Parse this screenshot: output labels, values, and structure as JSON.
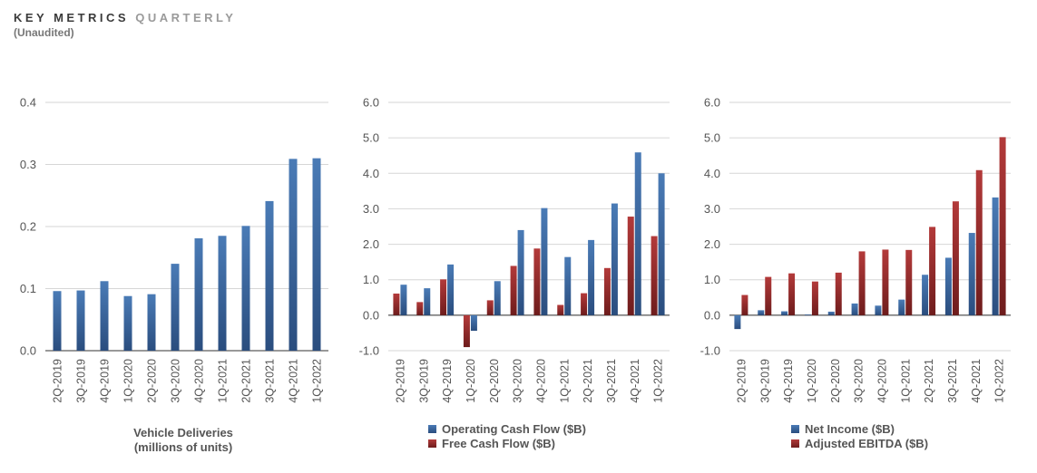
{
  "header": {
    "title_a": "KEY METRICS",
    "title_b": "QUARTERLY",
    "subtitle": "(Unaudited)"
  },
  "colors": {
    "bar_blue_top": "#4a7bb6",
    "bar_blue_bottom": "#2a4d7e",
    "bar_red_top": "#b33a3a",
    "bar_red_bottom": "#6e1c1c",
    "grid": "#d6d6d6",
    "axis": "#333333"
  },
  "chart_data": [
    {
      "type": "bar",
      "categories": [
        "2Q-2019",
        "3Q-2019",
        "4Q-2019",
        "1Q-2020",
        "2Q-2020",
        "3Q-2020",
        "4Q-2020",
        "1Q-2021",
        "2Q-2021",
        "3Q-2021",
        "4Q-2021",
        "1Q-2022"
      ],
      "series": [
        {
          "values": [
            0.096,
            0.097,
            0.112,
            0.088,
            0.091,
            0.14,
            0.181,
            0.185,
            0.201,
            0.241,
            0.309,
            0.31
          ]
        }
      ],
      "ylim": [
        0,
        0.4
      ],
      "yticks": [
        "0.0",
        "0.1",
        "0.2",
        "0.3",
        "0.4"
      ],
      "caption": [
        "Vehicle Deliveries",
        "(millions of units)"
      ],
      "grid": true
    },
    {
      "type": "bar",
      "categories": [
        "2Q-2019",
        "3Q-2019",
        "4Q-2019",
        "1Q-2020",
        "2Q-2020",
        "3Q-2020",
        "4Q-2020",
        "1Q-2021",
        "2Q-2021",
        "3Q-2021",
        "4Q-2021",
        "1Q-2022"
      ],
      "series": [
        {
          "name": "Free Cash Flow ($B)",
          "values": [
            0.61,
            0.37,
            1.01,
            -0.9,
            0.42,
            1.39,
            1.88,
            0.29,
            0.62,
            1.33,
            2.78,
            2.23
          ]
        },
        {
          "name": "Operating Cash Flow ($B)",
          "values": [
            0.86,
            0.76,
            1.43,
            -0.44,
            0.96,
            2.4,
            3.02,
            1.64,
            2.12,
            3.15,
            4.59,
            4.0
          ]
        }
      ],
      "ylim": [
        -1,
        6
      ],
      "yticks": [
        "-1.0",
        "0.0",
        "1.0",
        "2.0",
        "3.0",
        "4.0",
        "5.0",
        "6.0"
      ],
      "legend": [
        "Operating Cash Flow ($B)",
        "Free Cash Flow ($B)"
      ],
      "grid": true
    },
    {
      "type": "bar",
      "categories": [
        "2Q-2019",
        "3Q-2019",
        "4Q-2019",
        "1Q-2020",
        "2Q-2020",
        "3Q-2020",
        "4Q-2020",
        "1Q-2021",
        "2Q-2021",
        "3Q-2021",
        "4Q-2021",
        "1Q-2022"
      ],
      "series": [
        {
          "name": "Net Income ($B)",
          "values": [
            -0.39,
            0.14,
            0.11,
            0.02,
            0.1,
            0.33,
            0.27,
            0.44,
            1.14,
            1.62,
            2.32,
            3.32
          ]
        },
        {
          "name": "Adjusted EBITDA ($B)",
          "values": [
            0.57,
            1.08,
            1.18,
            0.95,
            1.2,
            1.8,
            1.85,
            1.84,
            2.49,
            3.21,
            4.09,
            5.02
          ]
        }
      ],
      "ylim": [
        -1,
        6
      ],
      "yticks": [
        "-1.0",
        "0.0",
        "1.0",
        "2.0",
        "3.0",
        "4.0",
        "5.0",
        "6.0"
      ],
      "legend": [
        "Net Income ($B)",
        "Adjusted EBITDA ($B)"
      ],
      "grid": true
    }
  ]
}
